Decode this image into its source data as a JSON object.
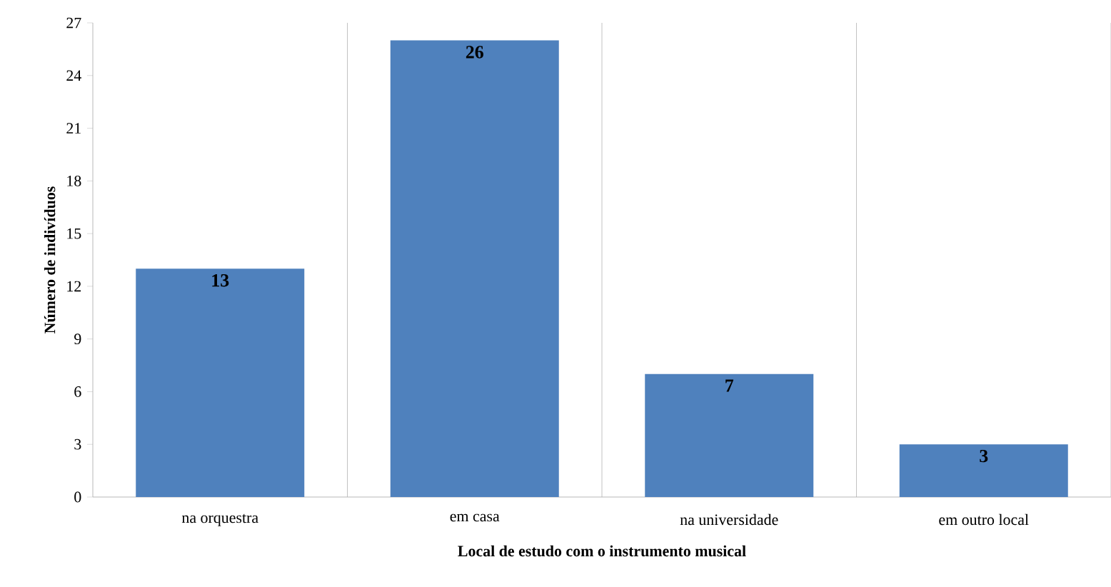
{
  "chart_data": {
    "type": "bar",
    "xlabel": "Local de estudo com o instrumento musical",
    "ylabel": "Número de indivíduos",
    "categories": [
      "na orquestra",
      "em casa",
      "na universidade",
      "em outro local"
    ],
    "values": [
      13,
      26,
      7,
      3
    ],
    "color": "#4f81bd",
    "ylim": [
      0,
      27
    ],
    "yticks": [
      0,
      3,
      6,
      9,
      12,
      15,
      18,
      21,
      24,
      27
    ],
    "grid": "x",
    "data_labels": true
  }
}
